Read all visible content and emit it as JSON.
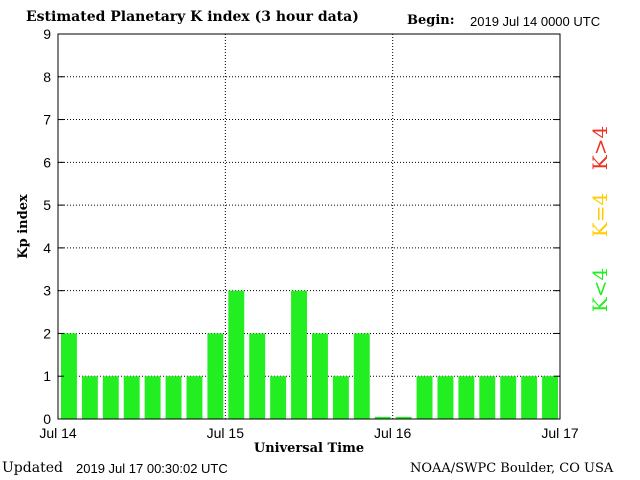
{
  "header": {
    "title": "Estimated Planetary K index (3 hour data)",
    "begin_label": "Begin:",
    "begin_value": "2019 Jul 14 0000 UTC"
  },
  "footer": {
    "updated_label": "Updated",
    "updated_value": "2019 Jul 17 00:30:02 UTC",
    "credit": "NOAA/SWPC Boulder, CO USA"
  },
  "legend": [
    {
      "label": "K<4",
      "color": "#22ee22"
    },
    {
      "label": "K=4",
      "color": "#ffcc00"
    },
    {
      "label": "K>4",
      "color": "#ee3322"
    }
  ],
  "chart_data": {
    "type": "bar",
    "xlabel": "Universal Time",
    "ylabel": "Kp index",
    "ylim": [
      0,
      9
    ],
    "yticks": [
      0,
      1,
      2,
      3,
      4,
      5,
      6,
      7,
      8,
      9
    ],
    "grid": true,
    "bar_color": "#22ee22",
    "xtick_labels": [
      "Jul 14",
      "Jul 15",
      "Jul 16",
      "Jul 17"
    ],
    "values": [
      2,
      1,
      1,
      1,
      1,
      1,
      1,
      2,
      3,
      2,
      1,
      3,
      2,
      1,
      2,
      0.05,
      0.05,
      1,
      1,
      1,
      1,
      1,
      1,
      1
    ]
  }
}
